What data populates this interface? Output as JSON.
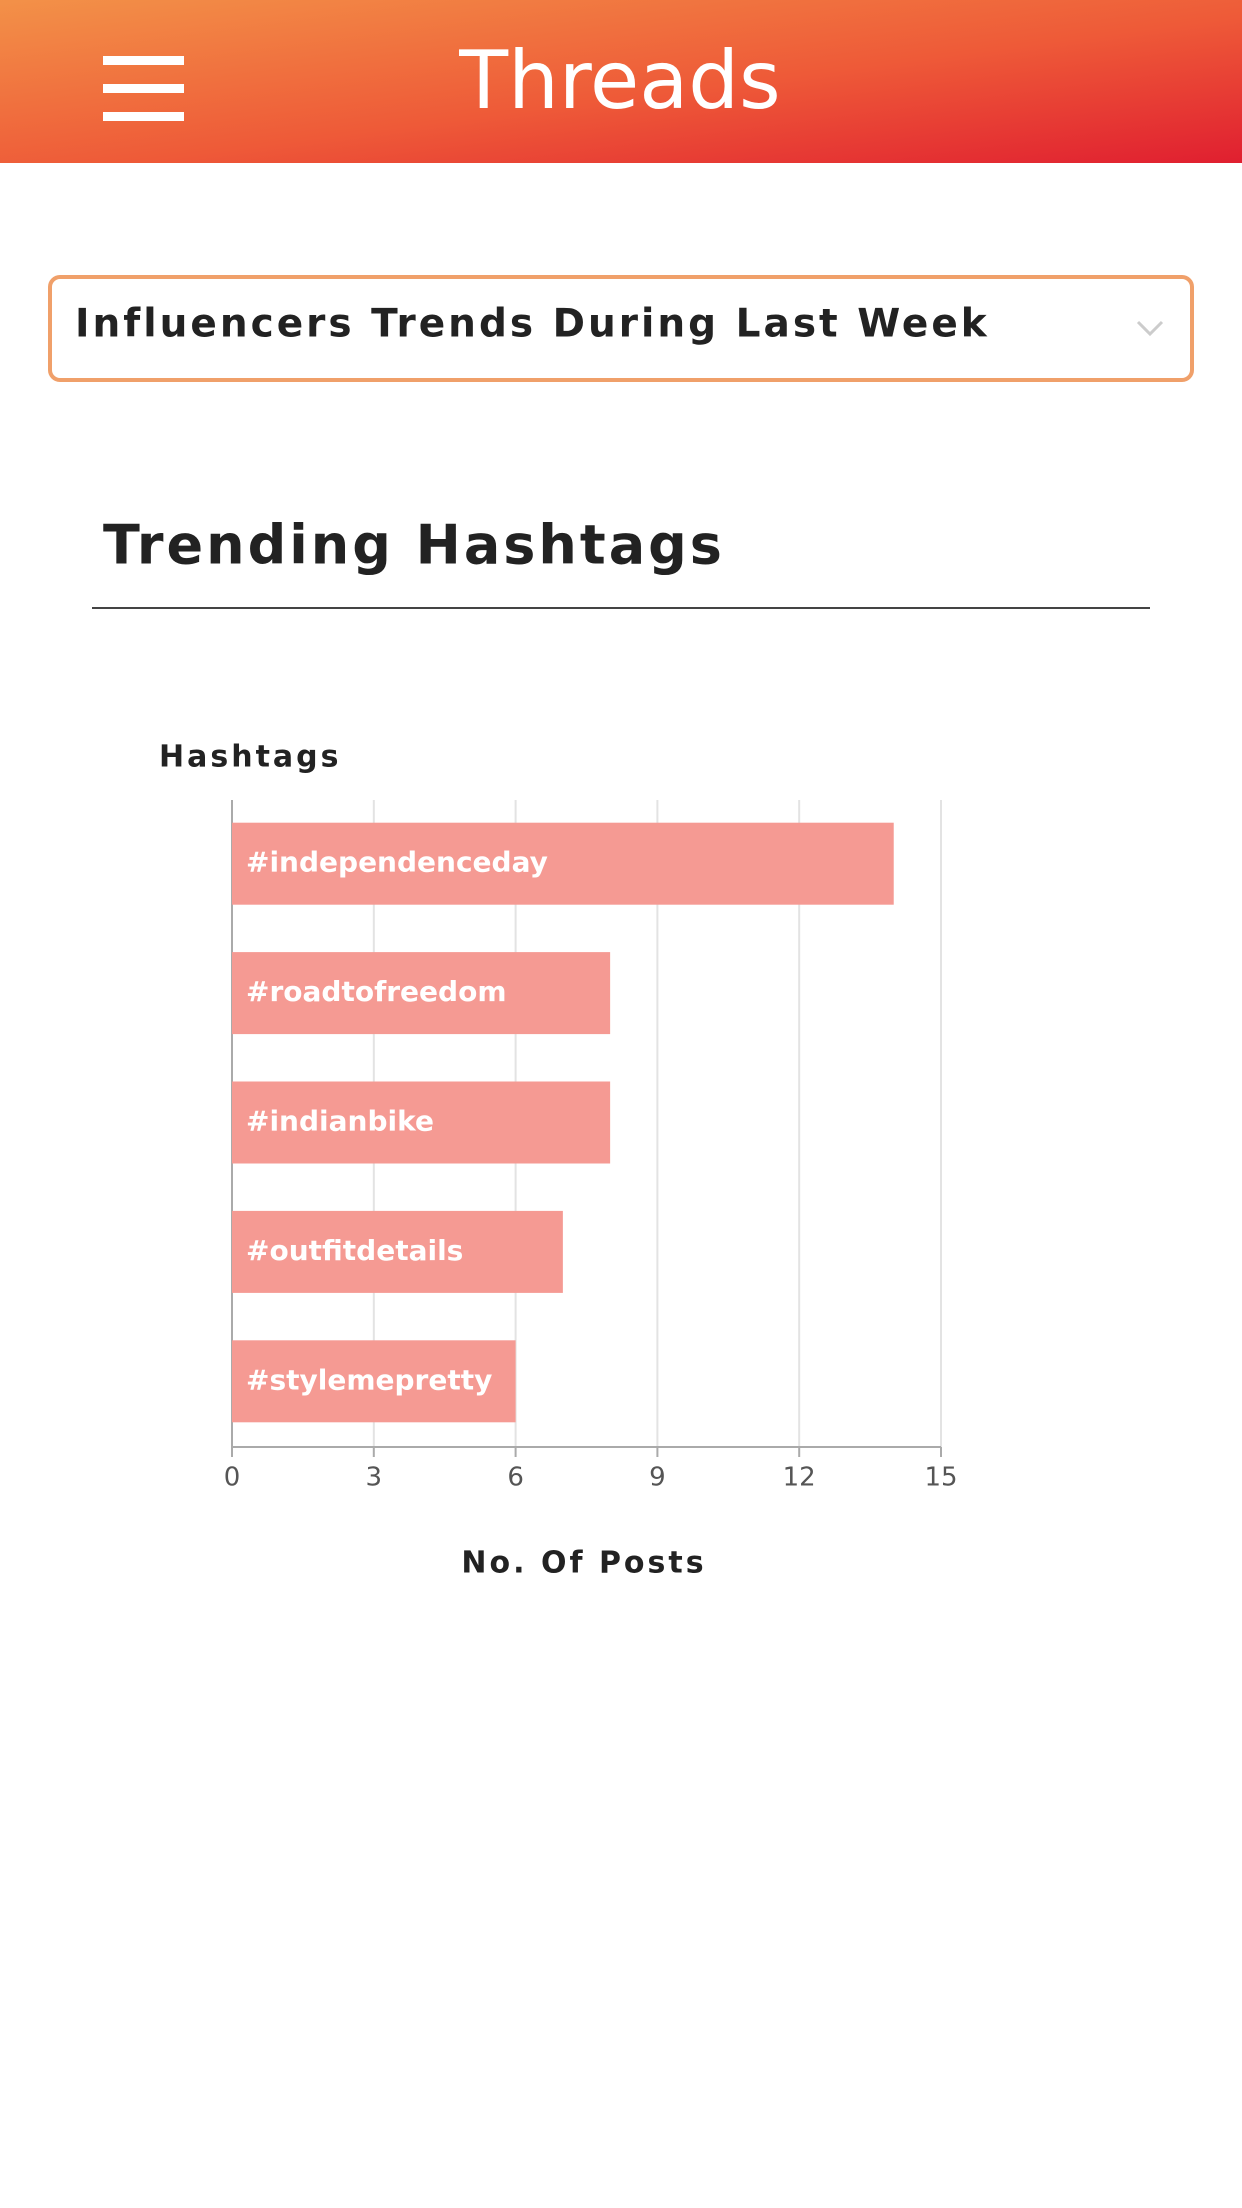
{
  "header": {
    "app_name": "Threads"
  },
  "dropdown": {
    "label": "Influencers Trends During Last Week"
  },
  "section": {
    "title": "Trending Hashtags"
  },
  "chart_data": {
    "type": "hbar",
    "y_label": "Hashtags",
    "x_label": "No. Of Posts",
    "categories": [
      "#independenceday",
      "#roadtofreedom",
      "#indianbike",
      "#outfitdetails",
      "#stylemepretty"
    ],
    "values": [
      14,
      8,
      8,
      7,
      6
    ],
    "color": "#f59a93",
    "xlim": [
      0,
      15
    ],
    "xticks": [
      0,
      3,
      6,
      9,
      12,
      15
    ],
    "grid": true
  }
}
